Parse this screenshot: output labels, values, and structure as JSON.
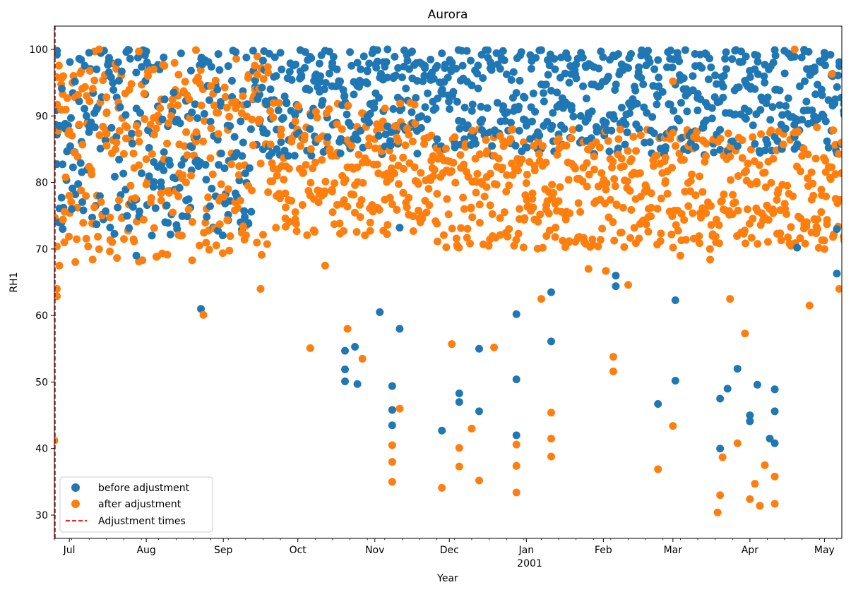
{
  "chart_data": {
    "type": "scatter",
    "title": "Aurora",
    "xlabel": "Year",
    "ylabel": "RH1",
    "ylim": [
      26.5,
      103.5
    ],
    "xlim": [
      "2000-06-25",
      "2001-05-08"
    ],
    "x_ticks": [
      {
        "date": "2000-07-01",
        "label": "Jul"
      },
      {
        "date": "2000-08-01",
        "label": "Aug"
      },
      {
        "date": "2000-09-01",
        "label": "Sep"
      },
      {
        "date": "2000-10-01",
        "label": "Oct"
      },
      {
        "date": "2000-11-01",
        "label": "Nov"
      },
      {
        "date": "2000-12-01",
        "label": "Dec"
      },
      {
        "date": "2001-01-01",
        "label": "Jan"
      },
      {
        "date": "2001-02-01",
        "label": "Feb"
      },
      {
        "date": "2001-03-01",
        "label": "Mar"
      },
      {
        "date": "2001-04-01",
        "label": "Apr"
      },
      {
        "date": "2001-05-01",
        "label": "May"
      }
    ],
    "year_label": "2001",
    "y_ticks": [
      30,
      40,
      50,
      60,
      70,
      80,
      90,
      100
    ],
    "legend_position": "lower-left",
    "grid": false,
    "series": [
      {
        "name": "before adjustment",
        "color": "#1f77b4",
        "marker": "circle",
        "points": [
          [
            "2000-06-26",
            99.2
          ],
          [
            "2000-06-27",
            88.5
          ],
          [
            "2000-06-28",
            94.1
          ],
          [
            "2000-07-02",
            76.0
          ],
          [
            "2000-07-05",
            98.6
          ],
          [
            "2000-07-09",
            99.5
          ],
          [
            "2000-07-12",
            97.0
          ],
          [
            "2000-07-15",
            99.8
          ],
          [
            "2000-07-18",
            88.2
          ],
          [
            "2000-07-21",
            95.3
          ],
          [
            "2000-07-25",
            99.9
          ],
          [
            "2000-07-28",
            69.0
          ],
          [
            "2000-08-01",
            99.7
          ],
          [
            "2000-08-04",
            97.2
          ],
          [
            "2000-08-08",
            98.8
          ],
          [
            "2000-08-12",
            93.5
          ],
          [
            "2000-08-15",
            99.4
          ],
          [
            "2000-08-19",
            96.8
          ],
          [
            "2000-08-23",
            61.0
          ],
          [
            "2000-08-26",
            98.1
          ],
          [
            "2000-08-30",
            99.3
          ],
          [
            "2000-09-03",
            97.5
          ],
          [
            "2000-09-06",
            99.6
          ],
          [
            "2000-09-09",
            86.0
          ],
          [
            "2000-09-13",
            99.8
          ],
          [
            "2000-09-17",
            98.3
          ],
          [
            "2000-09-20",
            94.0
          ],
          [
            "2000-09-24",
            99.5
          ],
          [
            "2000-09-28",
            97.9
          ],
          [
            "2000-10-02",
            99.9
          ],
          [
            "2000-10-05",
            98.4
          ],
          [
            "2000-10-08",
            96.0
          ],
          [
            "2000-10-12",
            99.8
          ],
          [
            "2000-10-15",
            97.3
          ],
          [
            "2000-10-18",
            95.2
          ],
          [
            "2000-10-22",
            99.6
          ],
          [
            "2000-10-25",
            98.0
          ],
          [
            "2000-10-29",
            96.7
          ],
          [
            "2000-11-02",
            99.9
          ],
          [
            "2000-11-05",
            97.4
          ],
          [
            "2000-11-09",
            98.9
          ],
          [
            "2000-11-12",
            95.8
          ],
          [
            "2000-11-16",
            99.7
          ],
          [
            "2000-11-20",
            97.8
          ],
          [
            "2000-11-24",
            96.5
          ],
          [
            "2000-11-28",
            99.4
          ],
          [
            "2000-12-02",
            97.0
          ],
          [
            "2000-12-06",
            99.8
          ],
          [
            "2000-12-10",
            94.6
          ],
          [
            "2000-12-14",
            99.2
          ],
          [
            "2000-12-18",
            96.9
          ],
          [
            "2000-12-22",
            98.7
          ],
          [
            "2000-12-26",
            95.4
          ],
          [
            "2000-12-30",
            99.6
          ],
          [
            "2001-01-03",
            97.1
          ],
          [
            "2001-01-07",
            99.9
          ],
          [
            "2001-01-11",
            93.8
          ],
          [
            "2001-01-15",
            98.8
          ],
          [
            "2001-01-19",
            96.3
          ],
          [
            "2001-01-23",
            99.5
          ],
          [
            "2001-01-27",
            97.6
          ],
          [
            "2001-01-31",
            99.7
          ],
          [
            "2001-02-03",
            95.9
          ],
          [
            "2001-02-07",
            99.3
          ],
          [
            "2001-02-11",
            97.2
          ],
          [
            "2001-02-15",
            96.0
          ],
          [
            "2001-02-19",
            99.8
          ],
          [
            "2001-02-23",
            98.4
          ],
          [
            "2001-02-27",
            99.6
          ],
          [
            "2001-03-02",
            94.7
          ],
          [
            "2001-03-06",
            99.9
          ],
          [
            "2001-03-10",
            97.5
          ],
          [
            "2001-03-14",
            99.4
          ],
          [
            "2001-03-18",
            96.1
          ],
          [
            "2001-03-22",
            98.6
          ],
          [
            "2001-03-26",
            99.8
          ],
          [
            "2001-03-30",
            95.3
          ],
          [
            "2001-04-03",
            99.2
          ],
          [
            "2001-04-07",
            97.7
          ],
          [
            "2001-04-11",
            99.9
          ],
          [
            "2001-04-15",
            96.4
          ],
          [
            "2001-04-19",
            98.9
          ],
          [
            "2001-04-23",
            99.7
          ],
          [
            "2001-04-27",
            97.3
          ],
          [
            "2001-05-01",
            99.5
          ],
          [
            "2001-05-04",
            96.2
          ],
          [
            "2001-05-07",
            98.1
          ],
          [
            "2000-10-20",
            54.7
          ],
          [
            "2000-10-20",
            50.1
          ],
          [
            "2000-10-20",
            51.9
          ],
          [
            "2000-11-08",
            43.5
          ],
          [
            "2000-11-08",
            49.4
          ],
          [
            "2000-11-08",
            45.8
          ],
          [
            "2000-11-11",
            58.0
          ],
          [
            "2000-11-11",
            73.2
          ],
          [
            "2000-12-05",
            47.0
          ],
          [
            "2000-12-05",
            48.3
          ],
          [
            "2000-12-13",
            45.6
          ],
          [
            "2000-12-13",
            55.0
          ],
          [
            "2000-12-28",
            60.2
          ],
          [
            "2000-12-28",
            42.0
          ],
          [
            "2000-12-28",
            50.4
          ],
          [
            "2001-01-11",
            56.1
          ],
          [
            "2001-01-11",
            63.5
          ],
          [
            "2001-02-06",
            66.0
          ],
          [
            "2001-02-06",
            64.4
          ],
          [
            "2001-02-23",
            46.7
          ],
          [
            "2001-03-02",
            50.2
          ],
          [
            "2001-03-02",
            62.3
          ],
          [
            "2001-03-20",
            40.0
          ],
          [
            "2001-03-20",
            47.5
          ],
          [
            "2001-03-23",
            49.0
          ],
          [
            "2001-03-27",
            52.0
          ],
          [
            "2001-04-01",
            45.0
          ],
          [
            "2001-04-01",
            44.1
          ],
          [
            "2001-04-04",
            49.6
          ],
          [
            "2001-04-09",
            41.5
          ],
          [
            "2001-04-11",
            40.8
          ],
          [
            "2001-04-11",
            45.6
          ],
          [
            "2001-04-11",
            48.9
          ],
          [
            "2001-04-20",
            70.2
          ],
          [
            "2001-05-06",
            66.3
          ],
          [
            "2001-05-06",
            73.0
          ],
          [
            "2000-11-28",
            42.7
          ],
          [
            "2000-10-25",
            49.7
          ],
          [
            "2000-10-24",
            55.3
          ],
          [
            "2000-11-03",
            60.5
          ]
        ]
      },
      {
        "name": "after adjustment",
        "color": "#ff7f0e",
        "marker": "circle",
        "points": [
          [
            "2000-06-25",
            41.2
          ],
          [
            "2000-06-26",
            62.9
          ],
          [
            "2000-06-26",
            64.0
          ],
          [
            "2000-06-27",
            67.5
          ],
          [
            "2000-06-29",
            71.0
          ],
          [
            "2000-07-01",
            78.0
          ],
          [
            "2000-07-03",
            84.5
          ],
          [
            "2000-07-05",
            88.7
          ],
          [
            "2000-07-08",
            93.0
          ],
          [
            "2000-07-10",
            81.2
          ],
          [
            "2000-07-13",
            100.0
          ],
          [
            "2000-07-16",
            90.4
          ],
          [
            "2000-07-20",
            86.0
          ],
          [
            "2000-07-23",
            71.5
          ],
          [
            "2000-07-26",
            94.8
          ],
          [
            "2000-07-29",
            99.7
          ],
          [
            "2000-08-01",
            83.5
          ],
          [
            "2000-08-04",
            97.0
          ],
          [
            "2000-08-07",
            77.3
          ],
          [
            "2000-08-10",
            88.9
          ],
          [
            "2000-08-14",
            96.2
          ],
          [
            "2000-08-17",
            80.0
          ],
          [
            "2000-08-21",
            99.9
          ],
          [
            "2000-08-24",
            60.1
          ],
          [
            "2000-08-27",
            94.5
          ],
          [
            "2000-08-30",
            87.3
          ],
          [
            "2000-09-03",
            79.0
          ],
          [
            "2000-09-06",
            92.1
          ],
          [
            "2000-09-09",
            73.4
          ],
          [
            "2000-09-13",
            85.6
          ],
          [
            "2000-09-16",
            64.0
          ],
          [
            "2000-09-19",
            96.5
          ],
          [
            "2000-09-23",
            82.0
          ],
          [
            "2000-09-26",
            74.6
          ],
          [
            "2000-09-30",
            89.2
          ],
          [
            "2000-10-03",
            81.4
          ],
          [
            "2000-10-06",
            55.1
          ],
          [
            "2000-10-09",
            78.8
          ],
          [
            "2000-10-12",
            67.5
          ],
          [
            "2000-10-15",
            84.0
          ],
          [
            "2000-10-18",
            72.3
          ],
          [
            "2000-10-21",
            58.0
          ],
          [
            "2000-10-24",
            79.6
          ],
          [
            "2000-10-27",
            53.5
          ],
          [
            "2000-10-30",
            76.1
          ],
          [
            "2000-11-02",
            82.7
          ],
          [
            "2000-11-05",
            77.4
          ],
          [
            "2000-11-08",
            35.0
          ],
          [
            "2000-11-08",
            40.5
          ],
          [
            "2000-11-08",
            38.0
          ],
          [
            "2000-11-11",
            46.0
          ],
          [
            "2000-11-14",
            88.1
          ],
          [
            "2000-11-17",
            91.7
          ],
          [
            "2000-11-20",
            75.0
          ],
          [
            "2000-11-23",
            80.6
          ],
          [
            "2000-11-26",
            73.8
          ],
          [
            "2000-11-28",
            34.1
          ],
          [
            "2000-12-02",
            55.7
          ],
          [
            "2000-12-05",
            37.3
          ],
          [
            "2000-12-05",
            40.1
          ],
          [
            "2000-12-07",
            76.0
          ],
          [
            "2000-12-10",
            43.0
          ],
          [
            "2000-12-13",
            35.2
          ],
          [
            "2000-12-16",
            79.3
          ],
          [
            "2000-12-19",
            55.2
          ],
          [
            "2000-12-22",
            82.0
          ],
          [
            "2000-12-25",
            73.0
          ],
          [
            "2000-12-28",
            33.4
          ],
          [
            "2000-12-28",
            37.4
          ],
          [
            "2000-12-28",
            40.6
          ],
          [
            "2001-01-01",
            79.9
          ],
          [
            "2001-01-04",
            85.5
          ],
          [
            "2001-01-07",
            62.5
          ],
          [
            "2001-01-11",
            38.8
          ],
          [
            "2001-01-11",
            41.5
          ],
          [
            "2001-01-11",
            45.4
          ],
          [
            "2001-01-14",
            77.2
          ],
          [
            "2001-01-18",
            80.4
          ],
          [
            "2001-01-22",
            76.9
          ],
          [
            "2001-01-26",
            67.0
          ],
          [
            "2001-01-30",
            79.4
          ],
          [
            "2001-02-02",
            66.7
          ],
          [
            "2001-02-05",
            53.8
          ],
          [
            "2001-02-05",
            51.6
          ],
          [
            "2001-02-08",
            82.3
          ],
          [
            "2001-02-11",
            64.6
          ],
          [
            "2001-02-14",
            77.5
          ],
          [
            "2001-02-23",
            36.9
          ],
          [
            "2001-02-26",
            80.2
          ],
          [
            "2001-03-01",
            95.2
          ],
          [
            "2001-03-01",
            43.4
          ],
          [
            "2001-03-04",
            69.0
          ],
          [
            "2001-03-08",
            78.7
          ],
          [
            "2001-03-12",
            75.4
          ],
          [
            "2001-03-16",
            68.4
          ],
          [
            "2001-03-19",
            30.4
          ],
          [
            "2001-03-20",
            33.0
          ],
          [
            "2001-03-21",
            38.7
          ],
          [
            "2001-03-24",
            62.5
          ],
          [
            "2001-03-27",
            40.8
          ],
          [
            "2001-03-30",
            57.3
          ],
          [
            "2001-04-01",
            32.4
          ],
          [
            "2001-04-03",
            34.7
          ],
          [
            "2001-04-05",
            31.4
          ],
          [
            "2001-04-07",
            37.5
          ],
          [
            "2001-04-09",
            76.0
          ],
          [
            "2001-04-11",
            31.7
          ],
          [
            "2001-04-11",
            35.8
          ],
          [
            "2001-04-13",
            72.2
          ],
          [
            "2001-04-16",
            79.5
          ],
          [
            "2001-04-19",
            100.0
          ],
          [
            "2001-04-22",
            84.0
          ],
          [
            "2001-04-25",
            61.5
          ],
          [
            "2001-04-28",
            88.3
          ],
          [
            "2001-05-01",
            70.0
          ],
          [
            "2001-05-04",
            96.3
          ],
          [
            "2001-05-07",
            64.0
          ]
        ]
      },
      {
        "name": "Adjustment times",
        "color": "#ff0000",
        "line_style": "dashed",
        "vlines": [
          "2000-06-25"
        ]
      }
    ]
  }
}
